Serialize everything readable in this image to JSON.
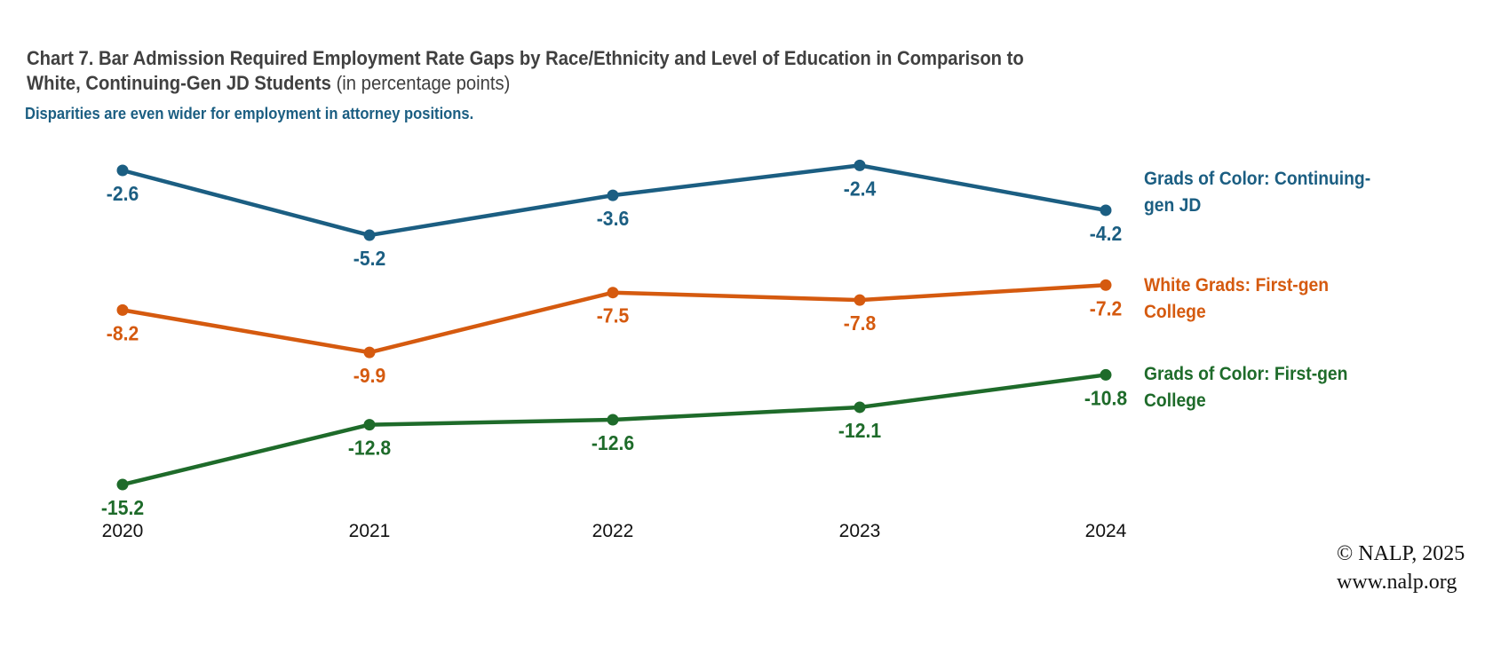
{
  "chart_data": {
    "type": "line",
    "title": "Chart 7. Bar Admission Required Employment Rate Gaps by Race/Ethnicity and Level of Education in Comparison to",
    "title_line2": "White, Continuing-Gen JD Students",
    "title_unit": "(in percentage points)",
    "subtitle": "Disparities are even wider for employment in attorney positions.",
    "x": [
      "2020",
      "2021",
      "2022",
      "2023",
      "2024"
    ],
    "series": [
      {
        "name": "Grads of Color: Continuing-gen JD",
        "label_lines": [
          "Grads of Color: Continuing-",
          "gen JD"
        ],
        "color": "#1b5e82",
        "values": [
          -2.6,
          -5.2,
          -3.6,
          -2.4,
          -4.2
        ]
      },
      {
        "name": "White Grads: First-gen College",
        "label_lines": [
          "White Grads: First-gen",
          "College"
        ],
        "color": "#d55a0f",
        "values": [
          -8.2,
          -9.9,
          -7.5,
          -7.8,
          -7.2
        ]
      },
      {
        "name": "Grads of Color: First-gen College",
        "label_lines": [
          "Grads of Color: First-gen",
          "College"
        ],
        "color": "#1e6b2a",
        "values": [
          -15.2,
          -12.8,
          -12.6,
          -12.1,
          -10.8
        ]
      }
    ],
    "ylim": [
      -15.5,
      -2.2
    ],
    "grid": false,
    "y_axis_visible": false,
    "legend": "right-end labels"
  },
  "footer": {
    "copyright": "© NALP, 2025",
    "url": "www.nalp.org"
  }
}
